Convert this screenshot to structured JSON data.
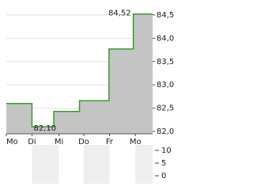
{
  "chart_data": [
    {
      "type": "step-area",
      "x": [
        0,
        1,
        1.85,
        2.85,
        4,
        4.95,
        5.7
      ],
      "values": [
        82.6,
        82.1,
        82.43,
        82.66,
        83.77,
        84.52,
        84.52
      ],
      "xlim": [
        0,
        5.7
      ],
      "xticks": [
        {
          "value": 0,
          "label": "Mo"
        },
        {
          "value": 1,
          "label": "Di"
        },
        {
          "value": 2.05,
          "label": "Mi"
        },
        {
          "value": 3.02,
          "label": "Do"
        },
        {
          "value": 4.02,
          "label": "Fr"
        },
        {
          "value": 5.03,
          "label": "Mo"
        }
      ],
      "ylim": [
        81.95,
        84.6
      ],
      "yticks": [
        {
          "value": 82.0,
          "label": "82,0"
        },
        {
          "value": 82.5,
          "label": "82,5"
        },
        {
          "value": 83.0,
          "label": "83,0"
        },
        {
          "value": 83.5,
          "label": "83,5"
        },
        {
          "value": 84.0,
          "label": "84,0"
        },
        {
          "value": 84.5,
          "label": "84,5"
        }
      ],
      "color": "#3a9a2e",
      "fill": "#c4c4c4",
      "grid": true,
      "annotations": [
        {
          "x": 4.95,
          "value": 84.52,
          "label": "84,52"
        },
        {
          "x": 1,
          "value": 82.1,
          "label": "82,10"
        }
      ]
    },
    {
      "type": "volume",
      "ylim": [
        0,
        10
      ],
      "yticks": [
        0,
        5,
        10
      ]
    }
  ]
}
